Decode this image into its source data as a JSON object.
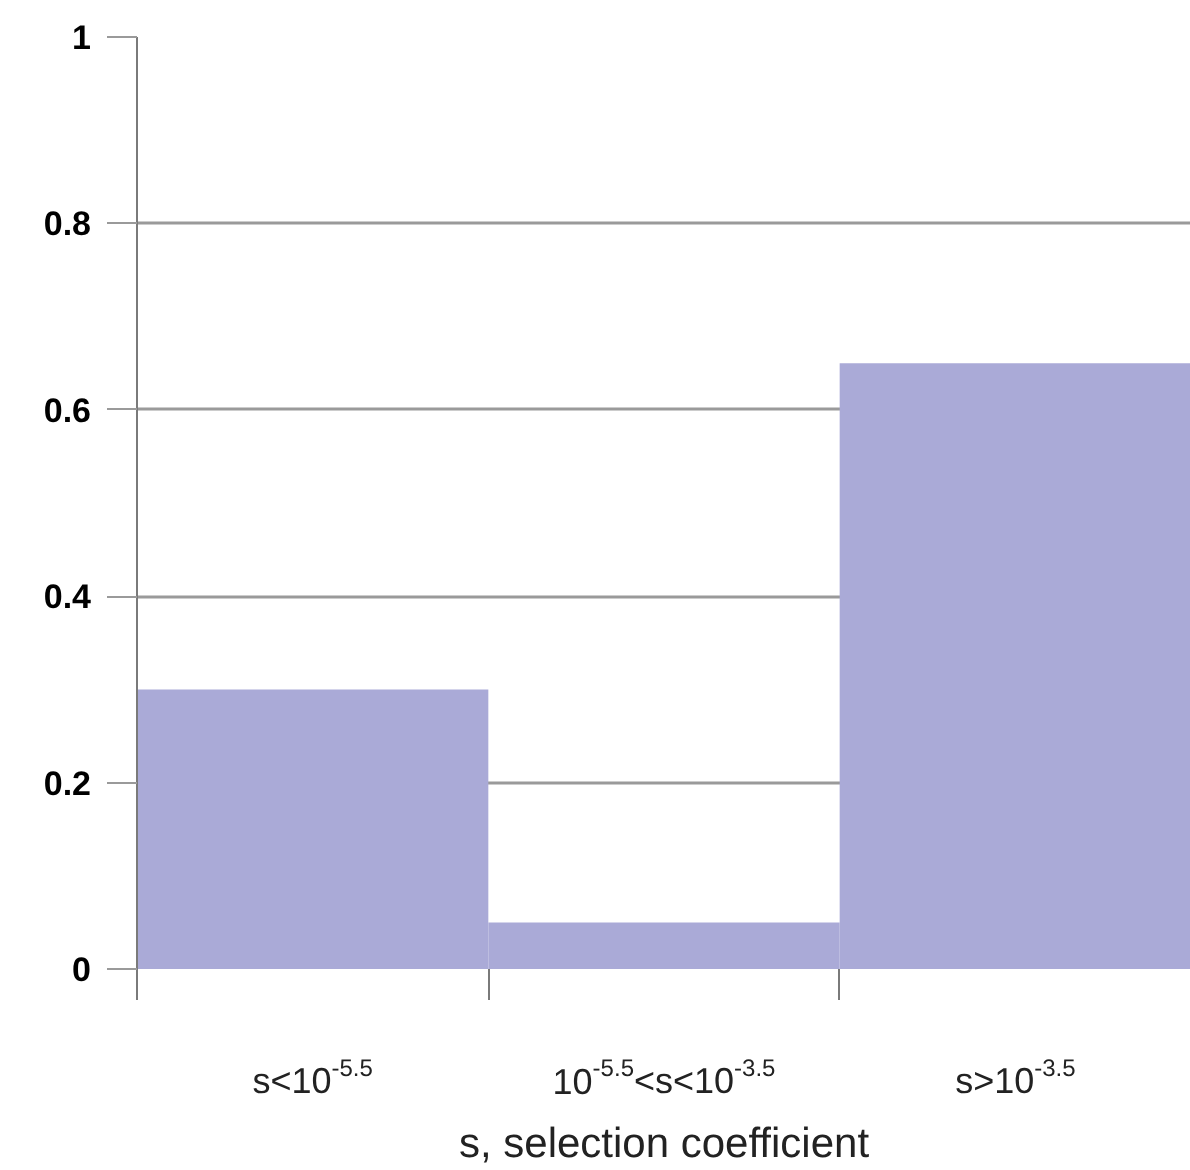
{
  "chart_data": {
    "type": "bar",
    "xlabel": "s, selection coefficient",
    "categories": [
      "s<10$^{-5.5}$",
      "10$^{-5.5}$<s<10$^{-3.5}$",
      "s>10$^{-3.5}$"
    ],
    "values": [
      0.3,
      0.05,
      0.65
    ],
    "color": "#aaaad7",
    "ylim": [
      0,
      1
    ],
    "yticks": [
      0,
      0.2,
      0.4,
      0.6,
      0.8,
      1
    ],
    "grid": "y"
  }
}
